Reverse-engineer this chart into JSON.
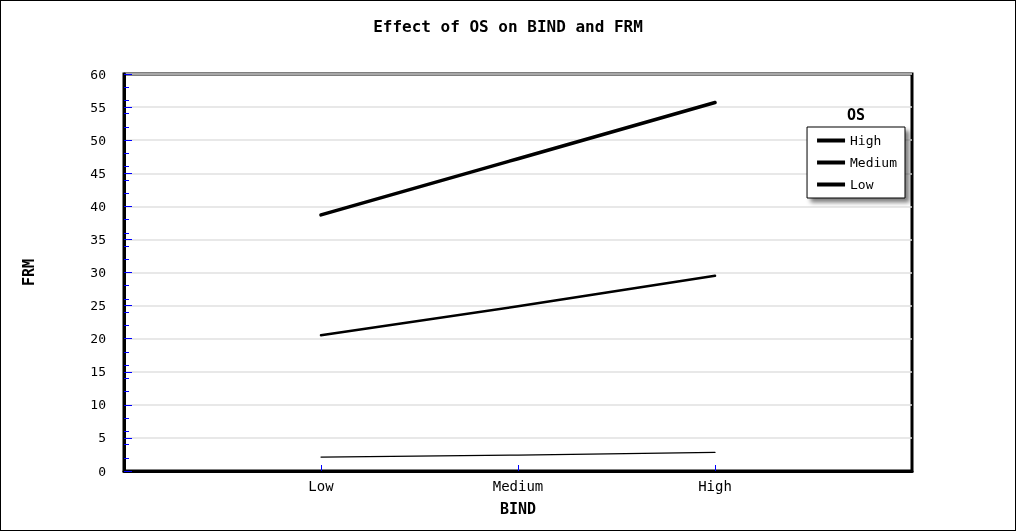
{
  "chart_data": {
    "type": "line",
    "title": "Effect of OS on BIND and FRM",
    "xlabel": "BIND",
    "ylabel": "FRM",
    "legend_title": "OS",
    "categories": [
      "Low",
      "Medium",
      "High"
    ],
    "series": [
      {
        "name": "High",
        "color": "#000000",
        "values": [
          38.7,
          47.2,
          55.7
        ]
      },
      {
        "name": "Medium",
        "color": "#000000",
        "values": [
          20.5,
          24.9,
          29.5
        ]
      },
      {
        "name": "Low",
        "color": "#000000",
        "values": [
          2.1,
          2.4,
          2.8
        ]
      }
    ],
    "ylim": [
      0,
      60
    ],
    "yticks": [
      0,
      5,
      10,
      15,
      20,
      25,
      30,
      35,
      40,
      45,
      50,
      55,
      60
    ],
    "grid": "y",
    "legend": "top right",
    "marker": "none",
    "line_style": "solid"
  }
}
